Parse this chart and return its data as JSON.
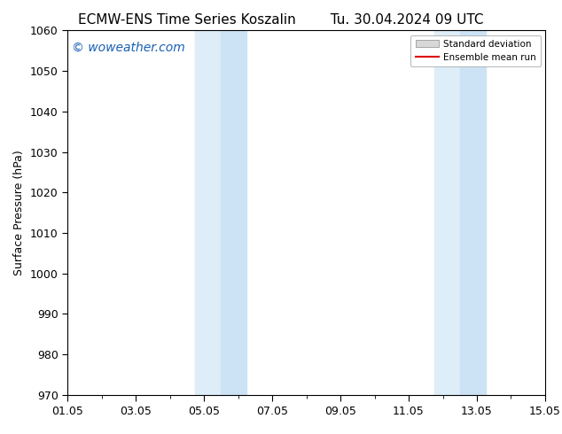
{
  "title_left": "ECMW-ENS Time Series Koszalin",
  "title_right": "Tu. 30.04.2024 09 UTC",
  "ylabel": "Surface Pressure (hPa)",
  "ylim": [
    970,
    1060
  ],
  "yticks": [
    970,
    980,
    990,
    1000,
    1010,
    1020,
    1030,
    1040,
    1050,
    1060
  ],
  "xlim_start": 0,
  "xlim_end": 14,
  "xtick_labels": [
    "01.05",
    "03.05",
    "05.05",
    "07.05",
    "09.05",
    "11.05",
    "13.05",
    "15.05"
  ],
  "xtick_positions": [
    0,
    2,
    4,
    6,
    8,
    10,
    12,
    14
  ],
  "shaded_bands": [
    {
      "x_start": 3.75,
      "x_end": 4.5
    },
    {
      "x_start": 4.5,
      "x_end": 5.25
    },
    {
      "x_start": 10.75,
      "x_end": 11.5
    },
    {
      "x_start": 11.5,
      "x_end": 12.25
    }
  ],
  "shaded_color_light": "#ddeef8",
  "shaded_color_mid": "#cce3f5",
  "watermark": "© woweather.com",
  "watermark_color": "#1a5fb4",
  "legend_std_label": "Standard deviation",
  "legend_mean_label": "Ensemble mean run",
  "legend_std_color": "#d8d8d8",
  "legend_mean_color": "#dd0000",
  "background_color": "#ffffff",
  "title_fontsize": 11,
  "axis_fontsize": 9,
  "tick_fontsize": 9,
  "watermark_fontsize": 10
}
